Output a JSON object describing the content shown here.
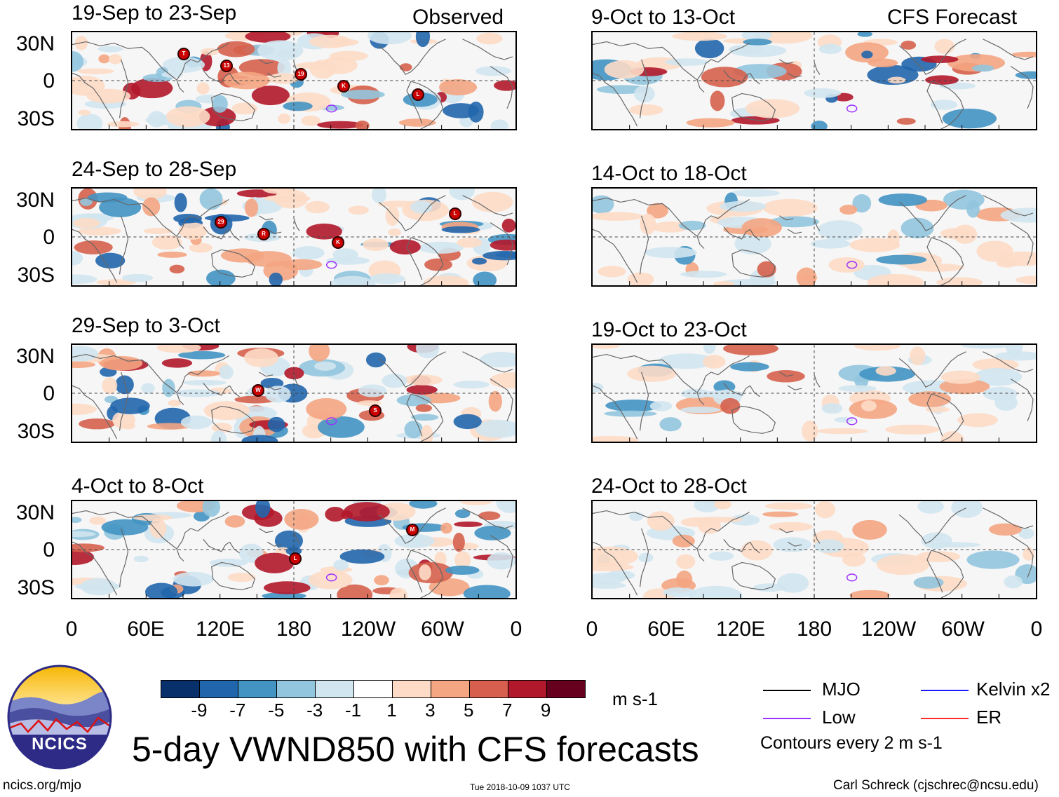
{
  "figure": {
    "title": "5-day VWND850 with CFS forecasts",
    "observed_label": "Observed",
    "forecast_label": "CFS Forecast",
    "source_url": "ncics.org/mjo",
    "timestamp": "Tue 2018-10-09 1037 UTC",
    "author": "Carl Schreck (cjschrec@ncsu.edu)",
    "logo_text": "NCICS"
  },
  "chart_data": {
    "type": "heatmap",
    "variable": "850-hPa meridional wind anomaly",
    "units": "m s-1",
    "contour_note": "Contours every 2 m s-1",
    "colorbar": {
      "ticks": [
        "-9",
        "-7",
        "-5",
        "-3",
        "-1",
        "1",
        "3",
        "5",
        "7",
        "9"
      ],
      "colors": [
        "#08306b",
        "#2166ac",
        "#4393c3",
        "#92c5de",
        "#d1e5f0",
        "#ffffff",
        "#fddbc7",
        "#f4a582",
        "#d6604d",
        "#b2182b",
        "#67001f"
      ]
    },
    "lat_labels": [
      "30N",
      "0",
      "30S"
    ],
    "lon_labels": [
      "0",
      "60E",
      "120E",
      "180",
      "120W",
      "60W",
      "0"
    ],
    "legend": [
      {
        "label": "MJO",
        "color": "#000000"
      },
      {
        "label": "Kelvin x2",
        "color": "#1a1aff"
      },
      {
        "label": "Low",
        "color": "#9b30ff"
      },
      {
        "label": "ER",
        "color": "#ff2a2a"
      }
    ],
    "observed_panels": [
      {
        "period": "19-Sep to 23-Sep",
        "storms": [
          "T",
          "19",
          "L",
          "13",
          "K"
        ]
      },
      {
        "period": "24-Sep to 28-Sep",
        "storms": [
          "29",
          "K",
          "L",
          "R"
        ]
      },
      {
        "period": "29-Sep to 3-Oct",
        "storms": [
          "W",
          "S"
        ]
      },
      {
        "period": "4-Oct to 8-Oct",
        "storms": [
          "L",
          "M"
        ]
      }
    ],
    "forecast_panels": [
      {
        "period": "9-Oct to 13-Oct"
      },
      {
        "period": "14-Oct to 18-Oct"
      },
      {
        "period": "19-Oct to 23-Oct"
      },
      {
        "period": "24-Oct to 28-Oct"
      }
    ]
  }
}
